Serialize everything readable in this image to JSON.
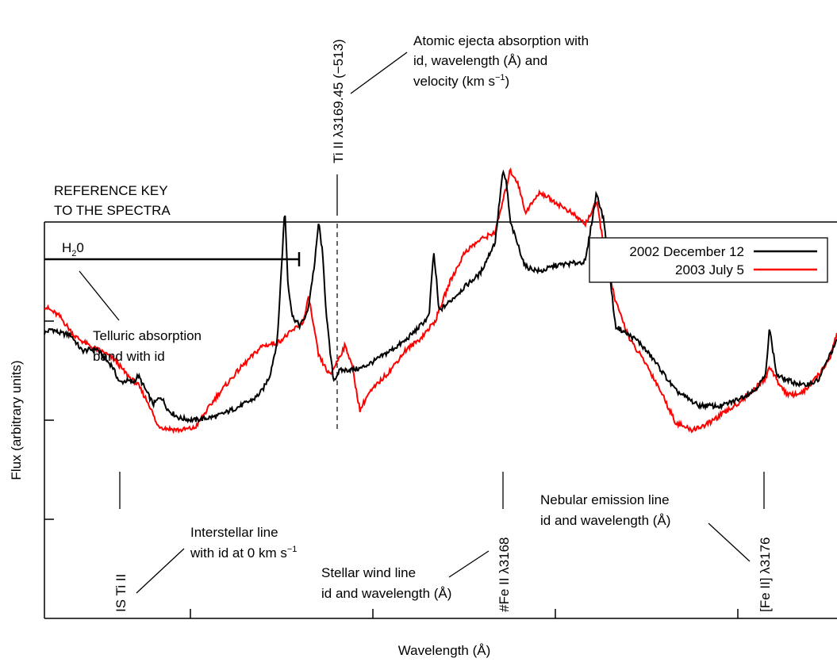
{
  "chart_data": {
    "type": "line",
    "title": "",
    "xlabel": "Wavelength (Å)",
    "ylabel": "Flux (arbitrary units)",
    "x_ticks_labeled": false,
    "y_ticks_labeled": false,
    "grid": false,
    "legend_position": "top-right",
    "key_title": [
      "REFERENCE KEY",
      "TO THE SPECTRA"
    ],
    "series": [
      {
        "name": "2002 December 12",
        "color": "#000000",
        "values": [
          [
            0,
            1.88
          ],
          [
            10,
            1.92
          ],
          [
            20,
            1.88
          ],
          [
            35,
            1.86
          ],
          [
            50,
            1.7
          ],
          [
            70,
            1.72
          ],
          [
            80,
            1.62
          ],
          [
            90,
            1.55
          ],
          [
            100,
            1.38
          ],
          [
            110,
            1.4
          ],
          [
            118,
            1.38
          ],
          [
            125,
            1.45
          ],
          [
            135,
            1.3
          ],
          [
            145,
            1.16
          ],
          [
            155,
            1.24
          ],
          [
            165,
            1.1
          ],
          [
            180,
            1.02
          ],
          [
            200,
            1.0
          ],
          [
            230,
            1.04
          ],
          [
            260,
            1.14
          ],
          [
            280,
            1.22
          ],
          [
            290,
            1.3
          ],
          [
            300,
            1.45
          ],
          [
            310,
            1.8
          ],
          [
            316,
            2.6
          ],
          [
            320,
            3.15
          ],
          [
            324,
            2.4
          ],
          [
            330,
            2.05
          ],
          [
            340,
            1.95
          ],
          [
            350,
            2.08
          ],
          [
            360,
            2.6
          ],
          [
            365,
            3.0
          ],
          [
            370,
            2.7
          ],
          [
            375,
            2.1
          ],
          [
            380,
            1.7
          ],
          [
            385,
            1.4
          ],
          [
            393,
            1.5
          ],
          [
            420,
            1.52
          ],
          [
            440,
            1.6
          ],
          [
            460,
            1.7
          ],
          [
            480,
            1.8
          ],
          [
            500,
            1.95
          ],
          [
            512,
            2.05
          ],
          [
            518,
            2.7
          ],
          [
            522,
            2.4
          ],
          [
            525,
            2.1
          ],
          [
            540,
            2.2
          ],
          [
            560,
            2.35
          ],
          [
            580,
            2.48
          ],
          [
            600,
            2.8
          ],
          [
            610,
            3.5
          ],
          [
            615,
            3.4
          ],
          [
            620,
            3.0
          ],
          [
            640,
            2.55
          ],
          [
            660,
            2.5
          ],
          [
            680,
            2.56
          ],
          [
            700,
            2.58
          ],
          [
            720,
            2.6
          ],
          [
            735,
            3.3
          ],
          [
            745,
            3.0
          ],
          [
            760,
            1.95
          ],
          [
            790,
            1.8
          ],
          [
            810,
            1.62
          ],
          [
            840,
            1.3
          ],
          [
            870,
            1.15
          ],
          [
            900,
            1.14
          ],
          [
            920,
            1.2
          ],
          [
            945,
            1.3
          ],
          [
            960,
            1.45
          ],
          [
            965,
            1.95
          ],
          [
            968,
            1.78
          ],
          [
            975,
            1.45
          ],
          [
            990,
            1.4
          ],
          [
            1010,
            1.35
          ],
          [
            1030,
            1.4
          ],
          [
            1045,
            1.65
          ],
          [
            1055,
            1.8
          ]
        ]
      },
      {
        "name": "2003 July 5",
        "color": "#ff0000",
        "values": [
          [
            0,
            2.15
          ],
          [
            20,
            2.05
          ],
          [
            40,
            1.85
          ],
          [
            60,
            1.75
          ],
          [
            80,
            1.68
          ],
          [
            95,
            1.6
          ],
          [
            105,
            1.5
          ],
          [
            115,
            1.42
          ],
          [
            125,
            1.35
          ],
          [
            140,
            1.15
          ],
          [
            150,
            0.95
          ],
          [
            160,
            0.92
          ],
          [
            180,
            0.9
          ],
          [
            200,
            0.92
          ],
          [
            230,
            1.25
          ],
          [
            260,
            1.52
          ],
          [
            290,
            1.75
          ],
          [
            310,
            1.78
          ],
          [
            330,
            1.9
          ],
          [
            345,
            2.0
          ],
          [
            352,
            2.25
          ],
          [
            356,
            2.05
          ],
          [
            365,
            1.65
          ],
          [
            380,
            1.45
          ],
          [
            400,
            1.75
          ],
          [
            408,
            1.6
          ],
          [
            420,
            1.1
          ],
          [
            430,
            1.25
          ],
          [
            445,
            1.38
          ],
          [
            460,
            1.5
          ],
          [
            480,
            1.7
          ],
          [
            500,
            1.82
          ],
          [
            520,
            2.0
          ],
          [
            540,
            2.4
          ],
          [
            560,
            2.7
          ],
          [
            580,
            2.82
          ],
          [
            600,
            2.9
          ],
          [
            610,
            3.2
          ],
          [
            620,
            3.52
          ],
          [
            630,
            3.4
          ],
          [
            640,
            3.1
          ],
          [
            660,
            3.3
          ],
          [
            680,
            3.2
          ],
          [
            700,
            3.1
          ],
          [
            720,
            2.98
          ],
          [
            735,
            3.2
          ],
          [
            745,
            2.75
          ],
          [
            760,
            2.2
          ],
          [
            780,
            1.8
          ],
          [
            800,
            1.58
          ],
          [
            820,
            1.3
          ],
          [
            840,
            0.98
          ],
          [
            860,
            0.9
          ],
          [
            880,
            0.95
          ],
          [
            900,
            1.05
          ],
          [
            920,
            1.15
          ],
          [
            940,
            1.28
          ],
          [
            960,
            1.42
          ],
          [
            965,
            1.55
          ],
          [
            975,
            1.4
          ],
          [
            990,
            1.25
          ],
          [
            1010,
            1.28
          ],
          [
            1030,
            1.45
          ],
          [
            1045,
            1.62
          ],
          [
            1055,
            1.88
          ]
        ]
      }
    ],
    "annotations": [
      {
        "id": "h2o",
        "label": "H2O"
      },
      {
        "id": "telluric",
        "text": [
          "Telluric absorption",
          "band with id"
        ]
      },
      {
        "id": "ejecta_line",
        "label": "Ti II λ3169.45 (−513)"
      },
      {
        "id": "ejecta_desc",
        "text": [
          "Atomic ejecta absorption with",
          "id, wavelength (Å) and",
          "velocity (km s−1)"
        ]
      },
      {
        "id": "is_line",
        "label": "IS Ti II"
      },
      {
        "id": "is_desc",
        "text": [
          "Interstellar line",
          "with id at 0 km s−1"
        ]
      },
      {
        "id": "wind_line",
        "label": "#Fe II λ3168"
      },
      {
        "id": "wind_desc",
        "text": [
          "Stellar wind line",
          "id and wavelength (Å)"
        ]
      },
      {
        "id": "neb_line",
        "label": "[Fe II] λ3176"
      },
      {
        "id": "neb_desc",
        "text": [
          "Nebular emission line",
          "id and wavelength (Å)"
        ]
      }
    ]
  }
}
